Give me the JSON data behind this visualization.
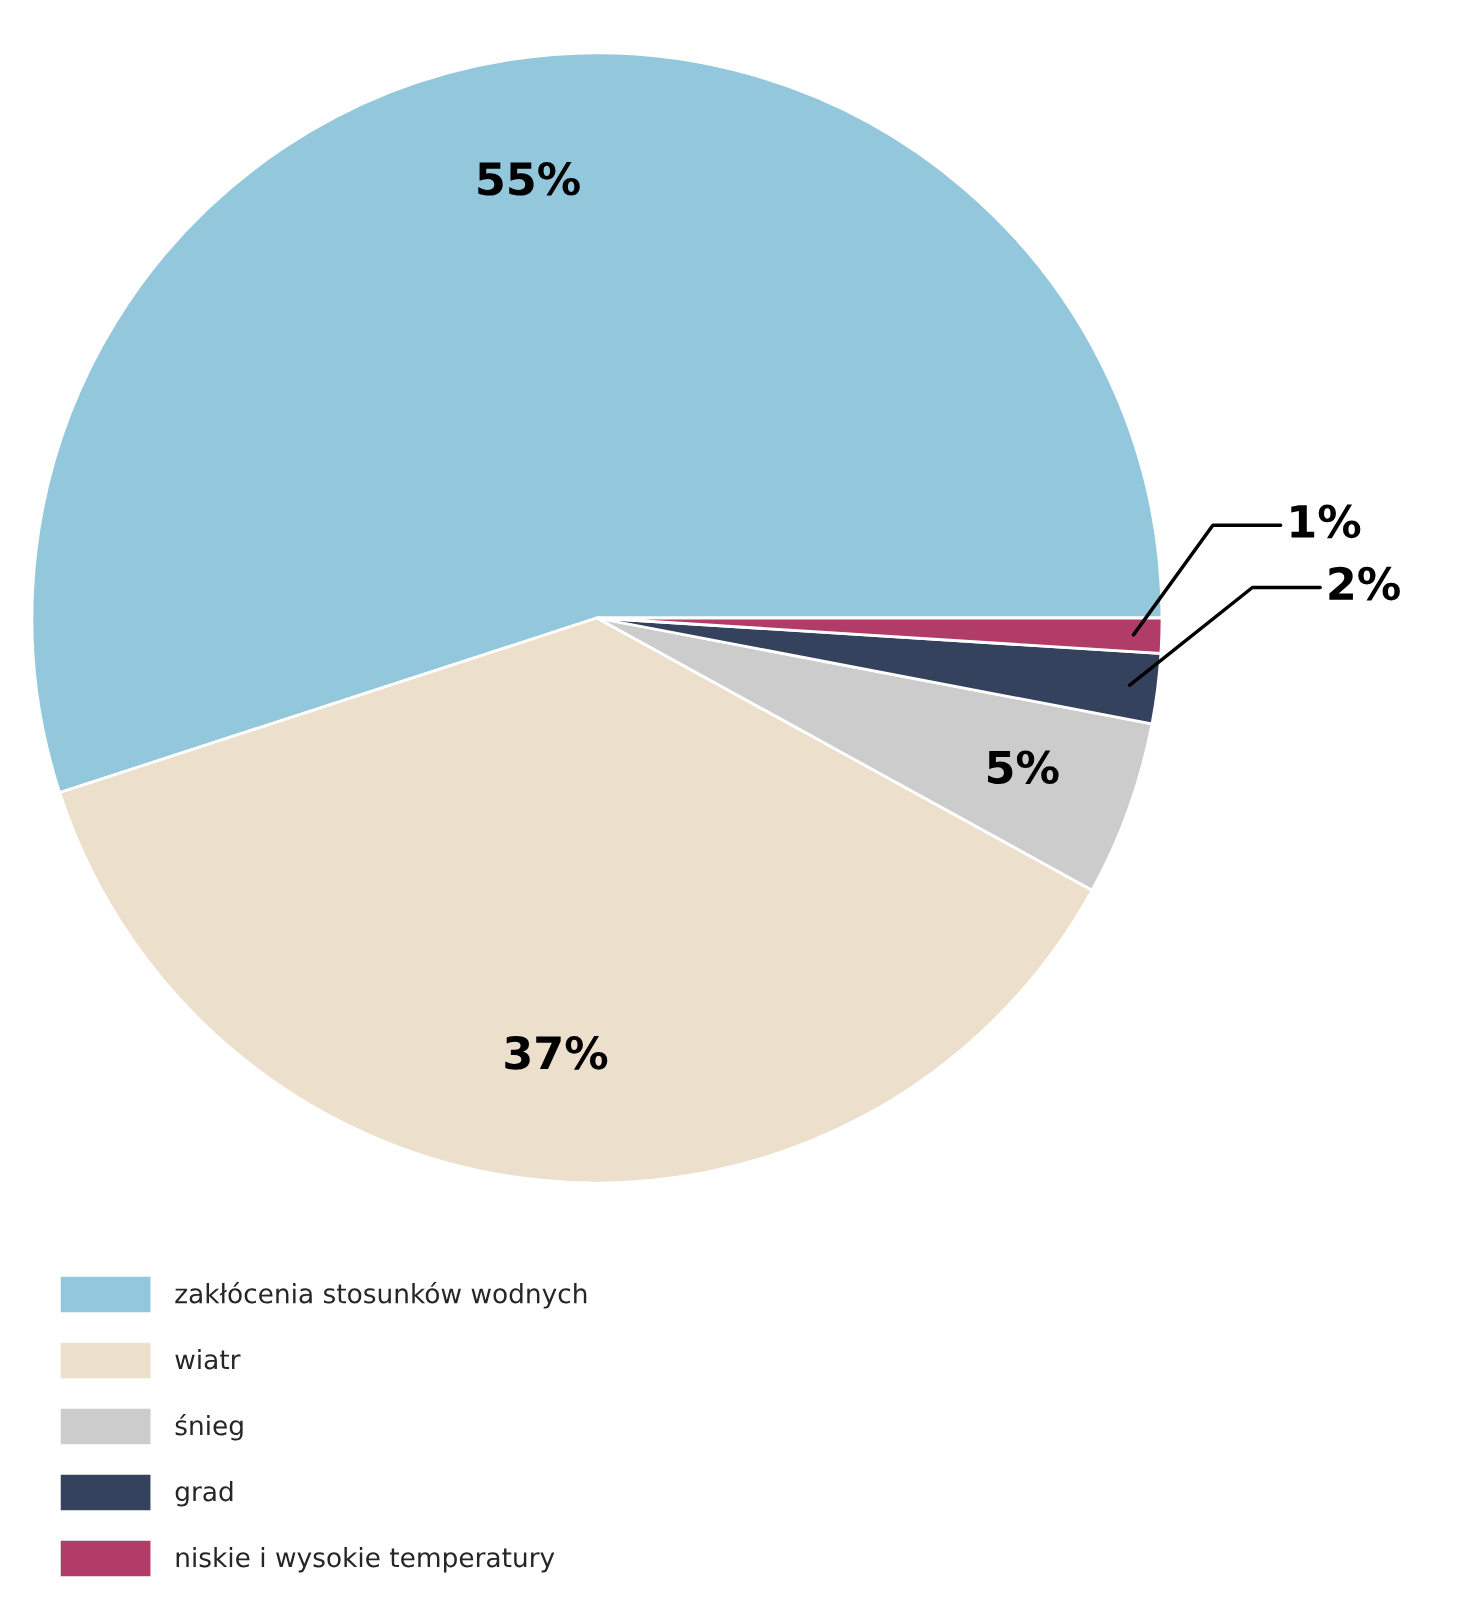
{
  "chart_data": {
    "type": "pie",
    "categories": [
      "zakłócenia stosunków wodnych",
      "wiatr",
      "śnieg",
      "grad",
      "niskie i wysokie temperatury"
    ],
    "values": [
      55,
      37,
      5,
      2,
      1
    ],
    "colors": [
      "#92c7dc",
      "#ecdfcc",
      "#cccccc",
      "#35425e",
      "#b03c67"
    ],
    "value_labels": [
      "55%",
      "37%",
      "5%",
      "2%",
      "1%"
    ],
    "legend": "bottom left"
  }
}
